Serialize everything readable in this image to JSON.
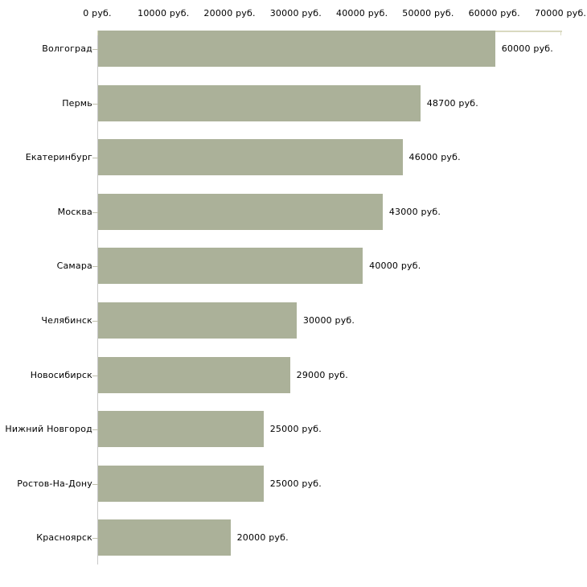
{
  "chart_data": {
    "type": "bar",
    "orientation": "horizontal",
    "title": "",
    "categories": [
      "Волгоград",
      "Пермь",
      "Екатеринбург",
      "Москва",
      "Самара",
      "Челябинск",
      "Новосибирск",
      "Нижний Новгород",
      "Ростов-На-Дону",
      "Красноярск"
    ],
    "values": [
      60000,
      48700,
      46000,
      43000,
      40000,
      30000,
      29000,
      25000,
      25000,
      20000
    ],
    "bar_labels": [
      "60000 руб.",
      "48700 руб.",
      "46000 руб.",
      "43000 руб.",
      "40000 руб.",
      "30000 руб.",
      "29000 руб.",
      "25000 руб.",
      "25000 руб.",
      "20000 руб."
    ],
    "x_axis": {
      "position": "top",
      "xlim": [
        0,
        70000
      ],
      "ticks": [
        0,
        10000,
        20000,
        30000,
        40000,
        50000,
        60000,
        70000
      ],
      "tick_labels": [
        "0 руб.",
        "10000 руб.",
        "20000 руб.",
        "30000 руб.",
        "40000 руб.",
        "50000 руб.",
        "60000 руб.",
        "70000 руб."
      ]
    },
    "unit": "руб.",
    "grid": false,
    "legend": null,
    "colors": {
      "bar": "#abb199",
      "x_axis_line": "#d9d9c0",
      "y_axis_line": "#c9c9c9",
      "text": "#000000",
      "background": "#ffffff"
    }
  }
}
